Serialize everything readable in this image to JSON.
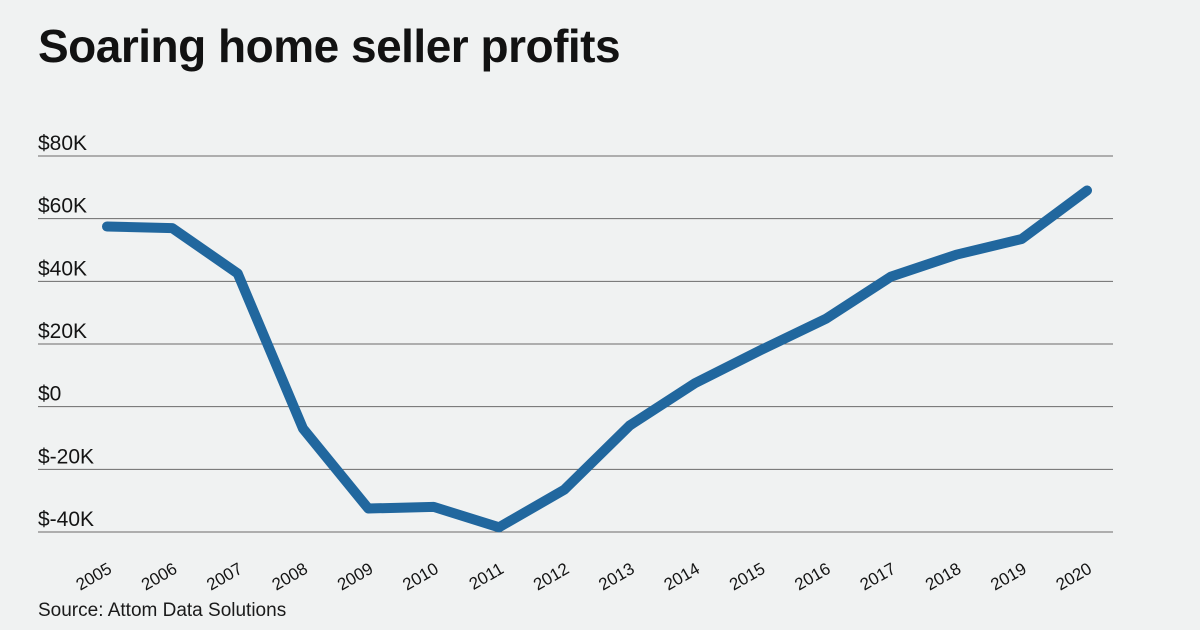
{
  "title": "Soaring home seller profits",
  "source": "Source: Attom Data Solutions",
  "colors": {
    "background": "#f0f2f2",
    "line": "#21679e",
    "grid": "#6b6b6b",
    "text": "#141414"
  },
  "chart_data": {
    "type": "line",
    "title": "Soaring home seller profits",
    "xlabel": "",
    "ylabel": "",
    "x": [
      "2005",
      "2006",
      "2007",
      "2008",
      "2009",
      "2010",
      "2011",
      "2012",
      "2013",
      "2014",
      "2015",
      "2016",
      "2017",
      "2018",
      "2019",
      "2020"
    ],
    "series": [
      {
        "values": [
          57500,
          57000,
          42500,
          -7000,
          -32500,
          -32000,
          -38500,
          -26500,
          -6000,
          7500,
          18000,
          28000,
          41500,
          48500,
          53500,
          69000
        ]
      }
    ],
    "ylim": [
      -40000,
      80000
    ],
    "yticks": [
      80000,
      60000,
      40000,
      20000,
      0,
      -20000,
      -40000
    ],
    "ytick_labels": [
      "$80K",
      "$60K",
      "$40K",
      "$20K",
      "$0",
      "$-20K",
      "$-40K"
    ],
    "grid": "horizontal",
    "legend": "none"
  }
}
